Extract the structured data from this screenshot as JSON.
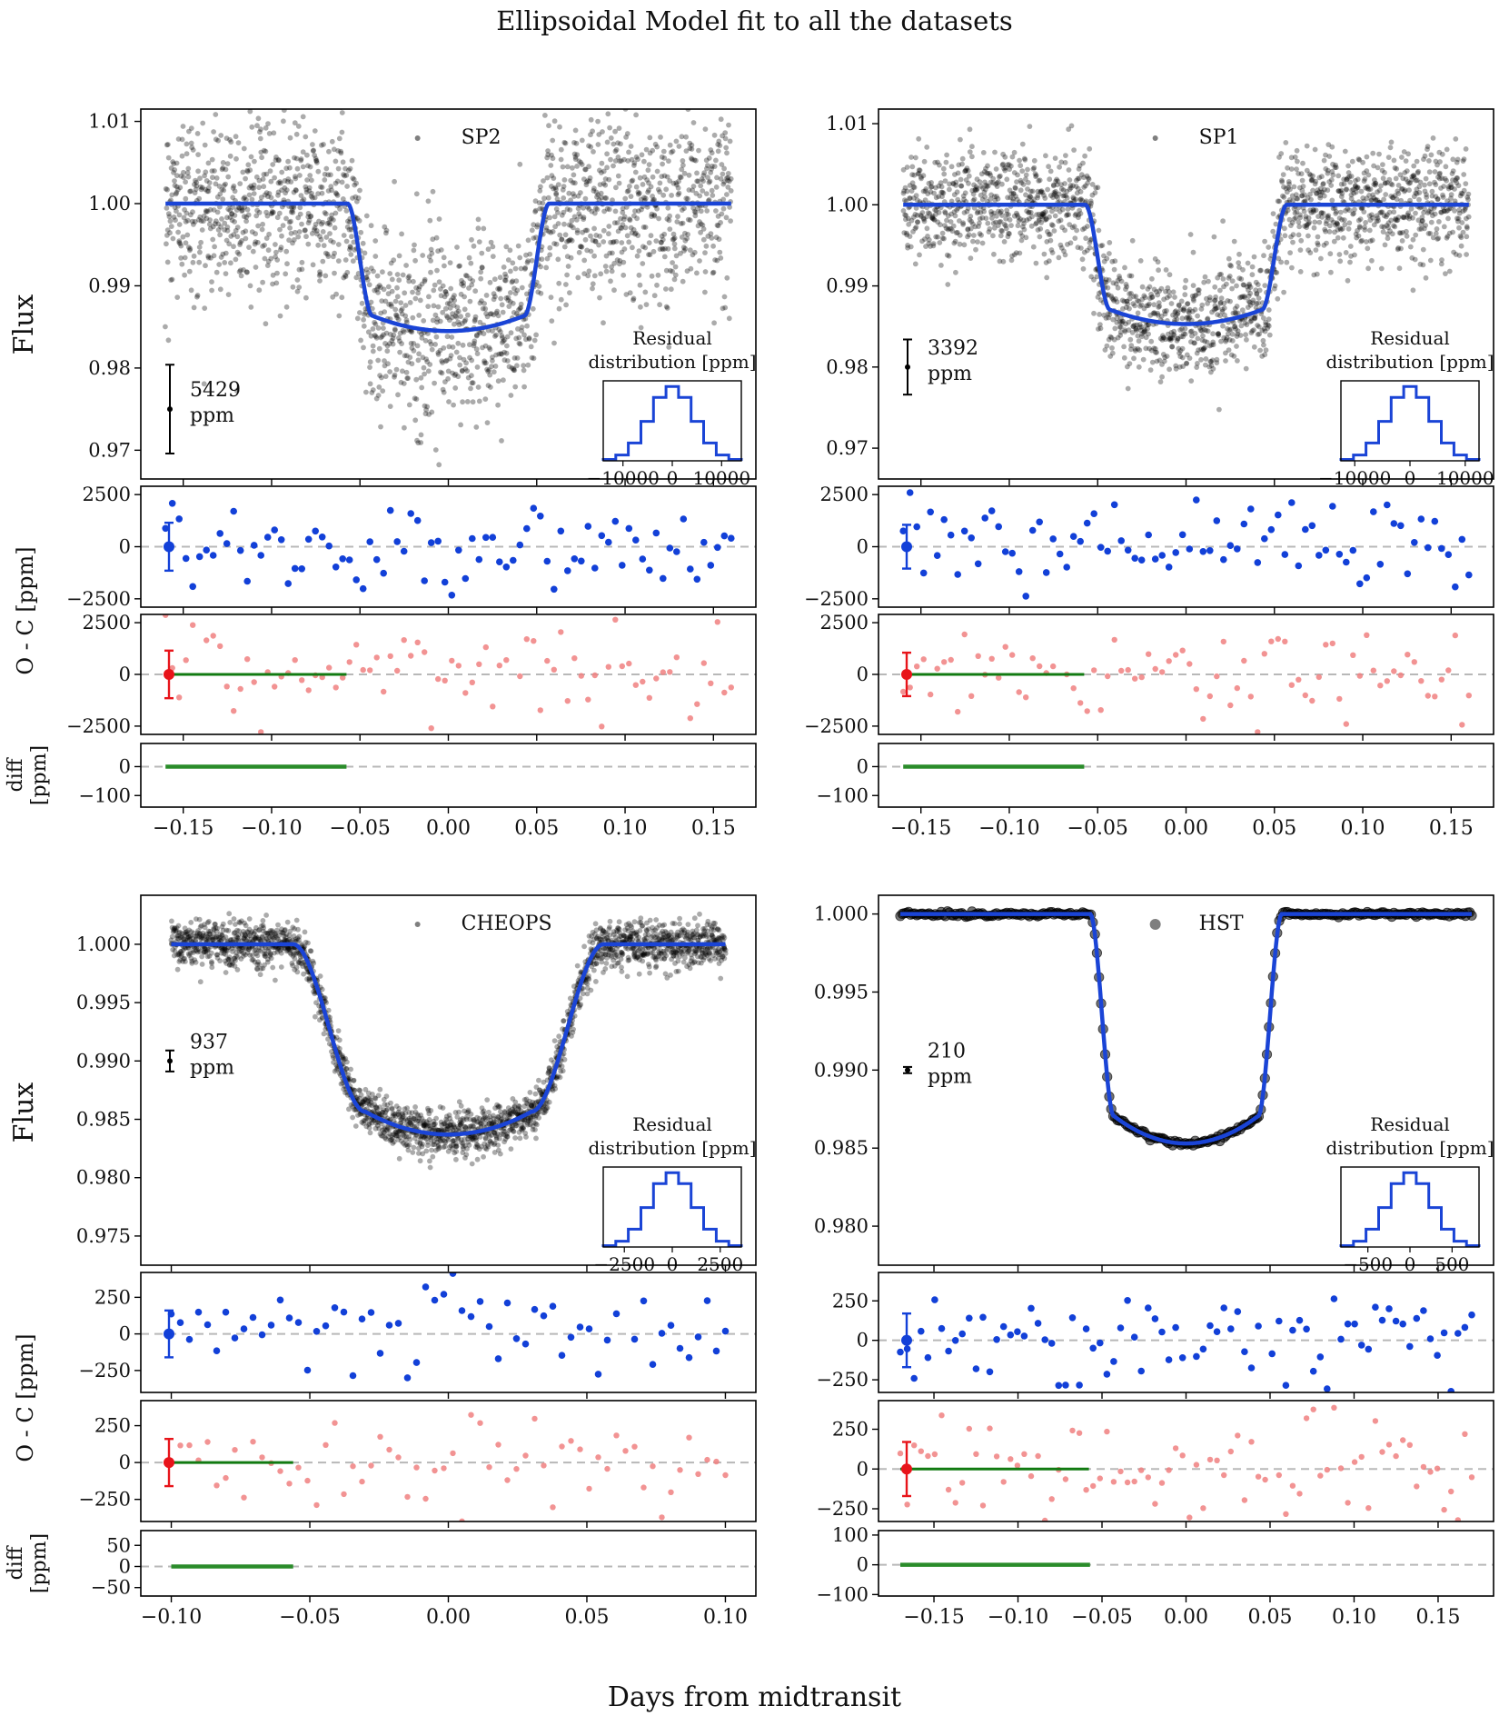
{
  "figure": {
    "title": "Ellipsoidal Model fit to all the datasets",
    "xlabel": "Days from midtransit",
    "flux_label": "Flux",
    "oc_label": "O - C [ppm]",
    "diff_label_line1": "diff",
    "diff_label_line2": "[ppm]",
    "inset_title_line1": "Residual",
    "inset_title_line2": "distribution [ppm]",
    "ppm_unit": "ppm"
  },
  "colors": {
    "model": "#1a44d6",
    "points": "#000000",
    "oc_blue": "#1240d8",
    "oc_red": "#f08080",
    "errbar_red": "#e8141a",
    "diff_green": "#2a8c2a",
    "oc_green": "#117a11",
    "zero_line": "#b8b8b8"
  },
  "chart_data": [
    {
      "type": "scatter",
      "dataset": "SP2",
      "noise_ppm": "5429",
      "depth": 0.0155,
      "t1": 0.057,
      "t2": 0.043,
      "flux": {
        "ylim": [
          0.9665,
          1.0115
        ],
        "yticks": [
          0.97,
          0.98,
          0.99,
          1.0,
          1.01
        ],
        "ytick_labels": [
          "0.97",
          "0.98",
          "0.99",
          "1.00",
          "1.01"
        ],
        "errbar_value": 0.975,
        "errbar_halfwidth": 0.0054
      },
      "xlim": [
        -0.174,
        0.174
      ],
      "xticks": [
        -0.15,
        -0.1,
        -0.05,
        0.0,
        0.05,
        0.1,
        0.15
      ],
      "xtick_labels": [
        "−0.15",
        "−0.10",
        "−0.05",
        "0.00",
        "0.05",
        "0.10",
        "0.15"
      ],
      "data_x_range": [
        -0.16,
        0.16
      ],
      "n_points": 1900,
      "marker_size": "small",
      "oc": {
        "ylim": [
          -2900,
          2900
        ],
        "yticks": [
          -2500,
          0,
          2500
        ],
        "ytick_labels": [
          "−2500",
          "0",
          "2500"
        ],
        "sigma": 1150,
        "n_bins": 84
      },
      "diff": {
        "ylim": [
          -140,
          80
        ],
        "yticks": [
          -100,
          0
        ],
        "ytick_labels": [
          "−100",
          "0"
        ],
        "amp": 60,
        "spike": 70
      },
      "inset": {
        "xticks": [
          -10000,
          0,
          10000
        ],
        "xtick_labels": [
          "−10000",
          "0",
          "10000"
        ],
        "xlim": [
          -14000,
          14000
        ]
      }
    },
    {
      "type": "scatter",
      "dataset": "SP1",
      "noise_ppm": "3392",
      "depth": 0.0147,
      "t1": 0.057,
      "t2": 0.043,
      "flux": {
        "ylim": [
          0.9662,
          1.0118
        ],
        "yticks": [
          0.97,
          0.98,
          0.99,
          1.0,
          1.01
        ],
        "ytick_labels": [
          "0.97",
          "0.98",
          "0.99",
          "1.00",
          "1.01"
        ],
        "errbar_value": 0.98,
        "errbar_halfwidth": 0.0034
      },
      "xlim": [
        -0.174,
        0.174
      ],
      "xticks": [
        -0.15,
        -0.1,
        -0.05,
        0.0,
        0.05,
        0.1,
        0.15
      ],
      "xtick_labels": [
        "−0.15",
        "−0.10",
        "−0.05",
        "0.00",
        "0.05",
        "0.10",
        "0.15"
      ],
      "data_x_range": [
        -0.16,
        0.16
      ],
      "n_points": 1900,
      "marker_size": "small",
      "oc": {
        "ylim": [
          -2900,
          2900
        ],
        "yticks": [
          -2500,
          0,
          2500
        ],
        "ytick_labels": [
          "−2500",
          "0",
          "2500"
        ],
        "sigma": 1050,
        "n_bins": 84
      },
      "diff": {
        "ylim": [
          -140,
          80
        ],
        "yticks": [
          -100,
          0
        ],
        "ytick_labels": [
          "−100",
          "0"
        ],
        "amp": 60,
        "spike": 70
      },
      "inset": {
        "xticks": [
          -10000,
          0,
          10000
        ],
        "xtick_labels": [
          "−10000",
          "0",
          "10000"
        ],
        "xlim": [
          -12500,
          12500
        ]
      }
    },
    {
      "type": "scatter",
      "dataset": "CHEOPS",
      "noise_ppm": "937",
      "depth": 0.0163,
      "t1": 0.056,
      "t2": 0.03,
      "flux": {
        "ylim": [
          0.9725,
          1.0042
        ],
        "yticks": [
          0.975,
          0.98,
          0.985,
          0.99,
          0.995,
          1.0
        ],
        "ytick_labels": [
          "0.975",
          "0.980",
          "0.985",
          "0.990",
          "0.995",
          "1.000"
        ],
        "errbar_value": 0.99,
        "errbar_halfwidth": 0.0009
      },
      "xlim": [
        -0.111,
        0.111
      ],
      "xticks": [
        -0.1,
        -0.05,
        0.0,
        0.05,
        0.1
      ],
      "xtick_labels": [
        "−0.10",
        "−0.05",
        "0.00",
        "0.05",
        "0.10"
      ],
      "data_x_range": [
        -0.1,
        0.1
      ],
      "n_points": 2300,
      "marker_size": "small",
      "oc": {
        "ylim": [
          -400,
          420
        ],
        "yticks": [
          -250,
          0,
          250
        ],
        "ytick_labels": [
          "−250",
          "0",
          "250"
        ],
        "sigma": 160,
        "n_bins": 62
      },
      "diff": {
        "ylim": [
          -70,
          85
        ],
        "yticks": [
          -50,
          0,
          50
        ],
        "ytick_labels": [
          "−50",
          "0",
          "50"
        ],
        "amp": 28,
        "spike": 60
      },
      "inset": {
        "xticks": [
          -2500,
          0,
          2500
        ],
        "xtick_labels": [
          "−2500",
          "0",
          "2500"
        ],
        "xlim": [
          -3600,
          3600
        ]
      }
    },
    {
      "type": "scatter",
      "dataset": "HST",
      "noise_ppm": "210",
      "depth": 0.0147,
      "t1": 0.057,
      "t2": 0.043,
      "flux": {
        "ylim": [
          0.9775,
          1.0012
        ],
        "yticks": [
          0.98,
          0.985,
          0.99,
          0.995,
          1.0
        ],
        "ytick_labels": [
          "0.980",
          "0.985",
          "0.990",
          "0.995",
          "1.000"
        ],
        "errbar_value": 0.99,
        "errbar_halfwidth": 0.0002
      },
      "xlim": [
        -0.183,
        0.183
      ],
      "xticks": [
        -0.15,
        -0.1,
        -0.05,
        0.0,
        0.05,
        0.1,
        0.15
      ],
      "xtick_labels": [
        "−0.15",
        "−0.10",
        "−0.05",
        "0.00",
        "0.05",
        "0.10",
        "0.15"
      ],
      "data_x_range": [
        -0.17,
        0.17
      ],
      "n_points": 280,
      "marker_size": "large",
      "oc": {
        "ylim": [
          -330,
          430
        ],
        "yticks": [
          -250,
          0,
          250
        ],
        "ytick_labels": [
          "−250",
          "0",
          "250"
        ],
        "sigma": 170,
        "n_bins": 84
      },
      "diff": {
        "ylim": [
          -105,
          115
        ],
        "yticks": [
          -100,
          0,
          100
        ],
        "ytick_labels": [
          "−100",
          "0",
          "100"
        ],
        "amp": 30,
        "spike": 85
      },
      "inset": {
        "xticks": [
          -500,
          0,
          500
        ],
        "xtick_labels": [
          "−500",
          "0",
          "500"
        ],
        "xlim": [
          -820,
          820
        ]
      }
    }
  ]
}
